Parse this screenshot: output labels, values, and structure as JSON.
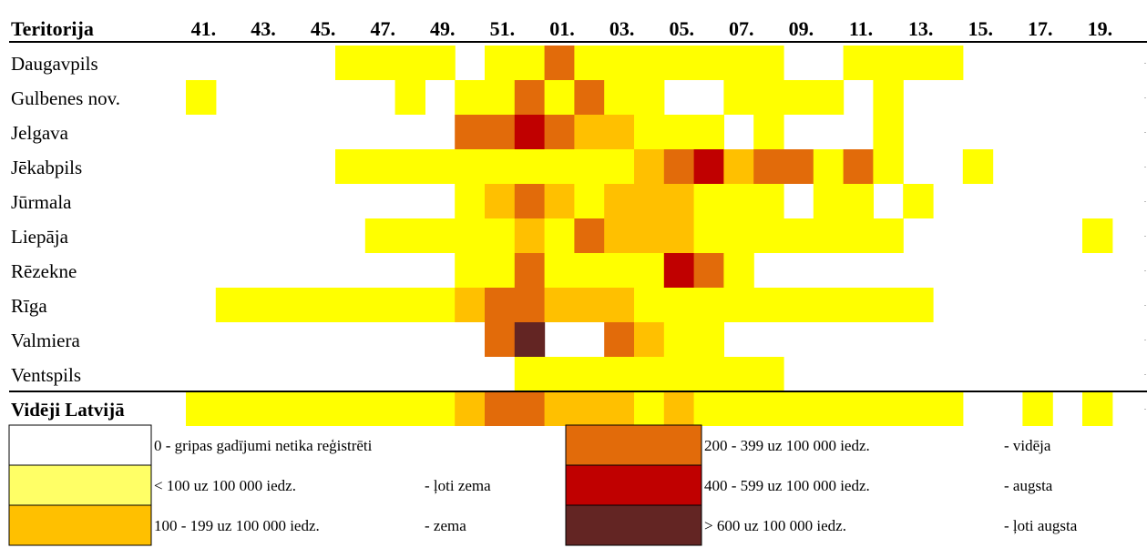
{
  "chart_data": {
    "type": "heatmap",
    "header_label": "Teritorija",
    "week_labels": [
      "41.",
      "43.",
      "45.",
      "47.",
      "49.",
      "51.",
      "01.",
      "03.",
      "05.",
      "07.",
      "09.",
      "11.",
      "13.",
      "15.",
      "17.",
      "19."
    ],
    "rows": [
      {
        "name": "Daugavpils",
        "levels": [
          0,
          0,
          0,
          0,
          0,
          1,
          1,
          1,
          1,
          0,
          1,
          1,
          3,
          1,
          1,
          1,
          1,
          1,
          1,
          1,
          0,
          0,
          1,
          1,
          1,
          1,
          0,
          0,
          0,
          0,
          0,
          0,
          0
        ]
      },
      {
        "name": "Gulbenes nov.",
        "levels": [
          1,
          0,
          0,
          0,
          0,
          0,
          0,
          1,
          0,
          1,
          1,
          3,
          1,
          3,
          1,
          1,
          0,
          0,
          1,
          1,
          1,
          1,
          0,
          1,
          0,
          0,
          0,
          0,
          0,
          0,
          0,
          0,
          0
        ]
      },
      {
        "name": "Jelgava",
        "levels": [
          0,
          0,
          0,
          0,
          0,
          0,
          0,
          0,
          0,
          3,
          3,
          4,
          3,
          2,
          2,
          1,
          1,
          1,
          0,
          1,
          0,
          0,
          0,
          1,
          0,
          0,
          0,
          0,
          0,
          0,
          0,
          0,
          0
        ]
      },
      {
        "name": "Jēkabpils",
        "levels": [
          0,
          0,
          0,
          0,
          0,
          1,
          1,
          1,
          1,
          1,
          1,
          1,
          1,
          1,
          1,
          2,
          3,
          4,
          2,
          3,
          3,
          1,
          3,
          1,
          0,
          0,
          1,
          0,
          0,
          0,
          0,
          0,
          0
        ]
      },
      {
        "name": "Jūrmala",
        "levels": [
          0,
          0,
          0,
          0,
          0,
          0,
          0,
          0,
          0,
          1,
          2,
          3,
          2,
          1,
          2,
          2,
          2,
          1,
          1,
          1,
          0,
          1,
          1,
          0,
          1,
          0,
          0,
          0,
          0,
          0,
          0,
          0,
          0
        ]
      },
      {
        "name": "Liepāja",
        "levels": [
          0,
          0,
          0,
          0,
          0,
          0,
          1,
          1,
          1,
          1,
          1,
          2,
          1,
          3,
          2,
          2,
          2,
          1,
          1,
          1,
          1,
          1,
          1,
          1,
          0,
          0,
          0,
          0,
          0,
          0,
          1,
          0,
          0
        ]
      },
      {
        "name": "Rēzekne",
        "levels": [
          0,
          0,
          0,
          0,
          0,
          0,
          0,
          0,
          0,
          1,
          1,
          3,
          1,
          1,
          1,
          1,
          4,
          3,
          1,
          0,
          0,
          0,
          0,
          0,
          0,
          0,
          0,
          0,
          0,
          0,
          0,
          0,
          0
        ]
      },
      {
        "name": "Rīga",
        "levels": [
          0,
          1,
          1,
          1,
          1,
          1,
          1,
          1,
          1,
          2,
          3,
          3,
          2,
          2,
          2,
          1,
          1,
          1,
          1,
          1,
          1,
          1,
          1,
          1,
          1,
          0,
          0,
          0,
          0,
          0,
          0,
          0,
          0
        ]
      },
      {
        "name": "Valmiera",
        "levels": [
          0,
          0,
          0,
          0,
          0,
          0,
          0,
          0,
          0,
          0,
          3,
          5,
          0,
          0,
          3,
          2,
          1,
          1,
          0,
          0,
          0,
          0,
          0,
          0,
          0,
          0,
          0,
          0,
          0,
          0,
          0,
          0,
          0
        ]
      },
      {
        "name": "Ventspils",
        "levels": [
          0,
          0,
          0,
          0,
          0,
          0,
          0,
          0,
          0,
          0,
          0,
          1,
          1,
          1,
          1,
          1,
          1,
          1,
          1,
          1,
          0,
          0,
          0,
          0,
          0,
          0,
          0,
          0,
          0,
          0,
          0,
          0,
          0
        ]
      },
      {
        "name": "Vidēji Latvijā",
        "levels": [
          1,
          1,
          1,
          1,
          1,
          1,
          1,
          1,
          1,
          2,
          3,
          3,
          2,
          2,
          2,
          1,
          2,
          1,
          1,
          1,
          1,
          1,
          1,
          1,
          1,
          1,
          0,
          0,
          1,
          0,
          1,
          0,
          0
        ]
      }
    ],
    "legend": [
      {
        "level": 0,
        "color": "#ffffff",
        "range": "0 - gripas gadījumi netika reģistrēti",
        "desc": ""
      },
      {
        "level": 1,
        "color": "#ffff00",
        "range": "<  100 uz 100 000 iedz.",
        "desc": "- ļoti zema"
      },
      {
        "level": 2,
        "color": "#ffc000",
        "range": "100 - 199 uz 100 000 iedz.",
        "desc": "- zema"
      },
      {
        "level": 3,
        "color": "#e26b0a",
        "range": "200 - 399 uz 100 000 iedz.",
        "desc": "- vidēja"
      },
      {
        "level": 4,
        "color": "#c00000",
        "range": "400 - 599 uz 100 000 iedz.",
        "desc": "- augsta"
      },
      {
        "level": 5,
        "color": "#632523",
        "range": ">  600 uz 100 000 iedz.",
        "desc": "- ļoti augsta"
      }
    ],
    "legend_swatch_colors": {
      "0": "#ffffff",
      "1": "#ffff66"
    }
  }
}
